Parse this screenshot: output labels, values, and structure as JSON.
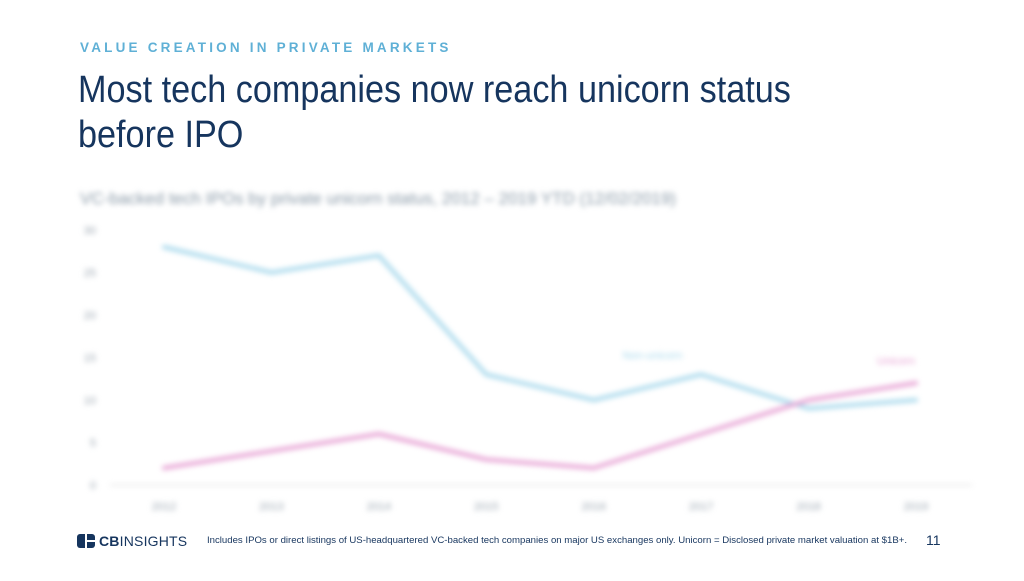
{
  "header": {
    "kicker": "VALUE CREATION IN PRIVATE MARKETS",
    "title_line1": "Most tech companies now reach unicorn status",
    "title_line2": "before IPO"
  },
  "chart_data": {
    "type": "line",
    "title": "VC-backed tech IPOs by private unicorn status, 2012 – 2019 YTD (12/02/2019)",
    "xlabel": "",
    "ylabel": "",
    "categories": [
      "2012",
      "2013",
      "2014",
      "2015",
      "2016",
      "2017",
      "2018",
      "2019"
    ],
    "ylim": [
      0,
      30
    ],
    "yticks": [
      0,
      5,
      10,
      15,
      20,
      25,
      30
    ],
    "grid": false,
    "legend": "inline labels",
    "series": [
      {
        "name": "Non-unicorn",
        "color": "#a9d9ec",
        "values": [
          28,
          25,
          27,
          13,
          10,
          13,
          9,
          10
        ]
      },
      {
        "name": "Unicorn",
        "color": "#e7a2d4",
        "values": [
          2,
          4,
          6,
          3,
          2,
          6,
          10,
          12
        ]
      }
    ]
  },
  "footer": {
    "logo_bold": "CB",
    "logo_thin": "INSIGHTS",
    "footnote": "Includes IPOs or direct listings of US-headquartered VC-backed tech companies on major US exchanges only. Unicorn = Disclosed private market valuation at $1B+.",
    "page_number": "11"
  },
  "colors": {
    "navy": "#16355e",
    "kicker_blue": "#5fb0d6",
    "non_unicorn": "#a9d9ec",
    "unicorn": "#e7a2d4"
  }
}
